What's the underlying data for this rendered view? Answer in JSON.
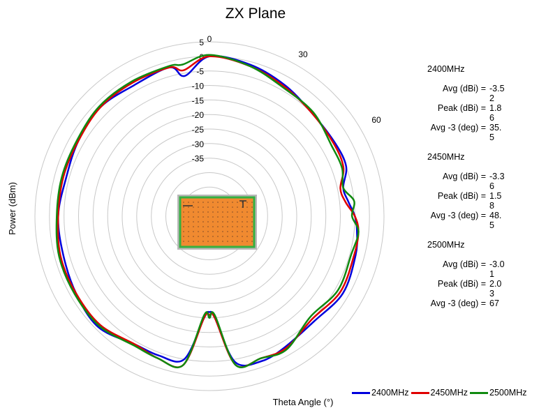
{
  "chart_data": {
    "type": "polar-line",
    "title": "ZX Plane",
    "ylabel": "Power (dBm)",
    "xlabel": "Theta  Angle (°)",
    "r_ticks": [
      5,
      0,
      -5,
      -10,
      -15,
      -20,
      -25,
      -30,
      -35
    ],
    "r_tick_labels": [
      "5",
      "0",
      "-5",
      "-10",
      "-15",
      "-20",
      "-25",
      "-30",
      "-35"
    ],
    "rlim": [
      -55,
      5
    ],
    "angle_labels": [
      {
        "angle": 0,
        "text": "0"
      },
      {
        "angle": 30,
        "text": "30"
      },
      {
        "angle": 60,
        "text": "60"
      }
    ],
    "theta_deg": [
      0,
      15,
      30,
      45,
      60,
      70,
      78,
      84,
      90,
      96,
      105,
      120,
      135,
      150,
      160,
      170,
      177,
      180,
      183,
      190,
      200,
      210,
      225,
      240,
      255,
      270,
      285,
      300,
      315,
      330,
      345,
      350,
      360
    ],
    "series": [
      {
        "name": "2400MHz",
        "color": "#0000dd",
        "values": [
          0,
          -1,
          -3,
          -5,
          -5,
          -5,
          -8,
          -7,
          -5,
          -4,
          -3,
          -2,
          -4,
          -3,
          -2,
          -4,
          -20,
          -22,
          -20,
          -5,
          -4,
          -4,
          -1,
          -2,
          -3,
          -3,
          -4,
          -3,
          -2,
          -3,
          -2,
          -6,
          0
        ]
      },
      {
        "name": "2450MHz",
        "color": "#e00000",
        "values": [
          0,
          -1.5,
          -3.5,
          -5,
          -5.5,
          -6,
          -9,
          -8,
          -5,
          -3.5,
          -3.5,
          -3,
          -5,
          -2.5,
          -3,
          -3,
          -20,
          -21,
          -20,
          -3,
          -3,
          -4,
          -2,
          -2,
          -2,
          -3,
          -3,
          -3,
          -2,
          -2,
          -2,
          -4,
          0
        ]
      },
      {
        "name": "2500MHz",
        "color": "#108a10",
        "values": [
          0.5,
          -1.5,
          -4,
          -4.5,
          -6.5,
          -6.5,
          -8,
          -5,
          -6,
          -3.5,
          -4.5,
          -4,
          -6,
          -2,
          -3,
          -3,
          -21,
          -20,
          -21,
          -3,
          -3,
          -3.5,
          -1.5,
          -1.5,
          -1.5,
          -2.5,
          -2.5,
          -2.5,
          -1.5,
          -1.5,
          -1.5,
          -2,
          0.5
        ]
      }
    ],
    "stats": [
      {
        "freq": "2400MHz",
        "rows": [
          {
            "label": "Avg (dBi) =",
            "value": "-3.52"
          },
          {
            "label": "Peak (dBi) =",
            "value": "1.86"
          },
          {
            "label": "Avg -3 (deg) =",
            "value": "35.5"
          }
        ]
      },
      {
        "freq": "2450MHz",
        "rows": [
          {
            "label": "Avg (dBi) =",
            "value": "-3.36"
          },
          {
            "label": "Peak (dBi) =",
            "value": "1.58"
          },
          {
            "label": "Avg -3 (deg) =",
            "value": "48.5"
          }
        ]
      },
      {
        "freq": "2500MHz",
        "rows": [
          {
            "label": "Avg (dBi) =",
            "value": "-3.01"
          },
          {
            "label": "Peak (dBi) =",
            "value": "2.03"
          },
          {
            "label": "Avg -3 (deg) =",
            "value": "67"
          }
        ]
      }
    ],
    "legend_position": "bottom-right",
    "grid": true
  },
  "colors": {
    "grid": "#c8c8c8",
    "board_fill": "#f08a30",
    "board_border": "#35b040",
    "board_frame": "#b8b8b8"
  }
}
